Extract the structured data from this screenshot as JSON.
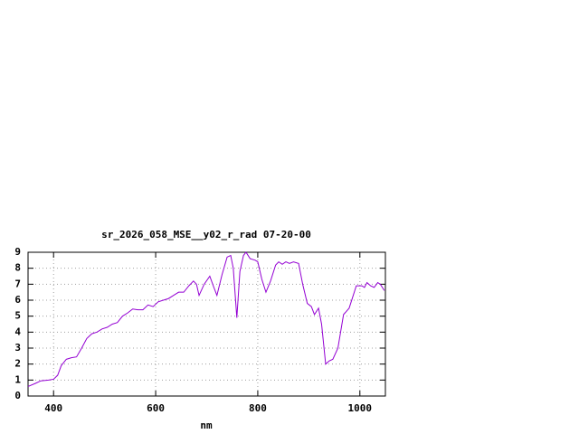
{
  "chart_data": {
    "type": "line",
    "title": "sr_2026_058_MSE__y02_r_rad 07-20-00",
    "x_label": "nm",
    "xlim": [
      350,
      1050
    ],
    "xticks": [
      400,
      600,
      800,
      1000
    ],
    "ylim": [
      0,
      9
    ],
    "yticks": [
      0,
      1,
      2,
      3,
      4,
      5,
      6,
      7,
      8,
      9
    ],
    "grid": true,
    "series": [
      {
        "color": "#9400d3",
        "x": [
          350,
          365,
          375,
          390,
          400,
          408,
          415,
          425,
          435,
          445,
          455,
          465,
          475,
          485,
          495,
          505,
          515,
          525,
          535,
          545,
          555,
          565,
          575,
          585,
          595,
          605,
          615,
          625,
          635,
          645,
          655,
          665,
          674,
          680,
          685,
          695,
          706,
          714,
          720,
          730,
          740,
          747,
          752,
          759,
          765,
          772,
          777,
          785,
          795,
          800,
          808,
          816,
          825,
          835,
          841,
          848,
          855,
          862,
          870,
          880,
          888,
          897,
          905,
          911,
          919,
          925,
          933,
          940,
          947,
          957,
          968,
          979,
          993,
          1004,
          1009,
          1014,
          1021,
          1028,
          1035,
          1040,
          1048
        ],
        "values": [
          0.6,
          0.8,
          0.95,
          1.0,
          1.05,
          1.3,
          1.9,
          2.3,
          2.4,
          2.45,
          3.0,
          3.6,
          3.9,
          4.0,
          4.2,
          4.3,
          4.5,
          4.6,
          5.0,
          5.2,
          5.45,
          5.4,
          5.4,
          5.7,
          5.6,
          5.9,
          6.0,
          6.1,
          6.3,
          6.5,
          6.5,
          6.9,
          7.2,
          7.0,
          6.3,
          7.0,
          7.5,
          6.8,
          6.3,
          7.6,
          8.7,
          8.8,
          8.0,
          4.9,
          7.8,
          8.8,
          9.0,
          8.6,
          8.5,
          8.4,
          7.3,
          6.5,
          7.2,
          8.2,
          8.4,
          8.25,
          8.4,
          8.3,
          8.4,
          8.3,
          7.0,
          5.8,
          5.6,
          5.1,
          5.5,
          4.5,
          2.0,
          2.2,
          2.3,
          3.0,
          5.1,
          5.5,
          6.9,
          6.9,
          6.8,
          7.1,
          6.9,
          6.8,
          7.1,
          7.0,
          6.6
        ]
      }
    ]
  }
}
